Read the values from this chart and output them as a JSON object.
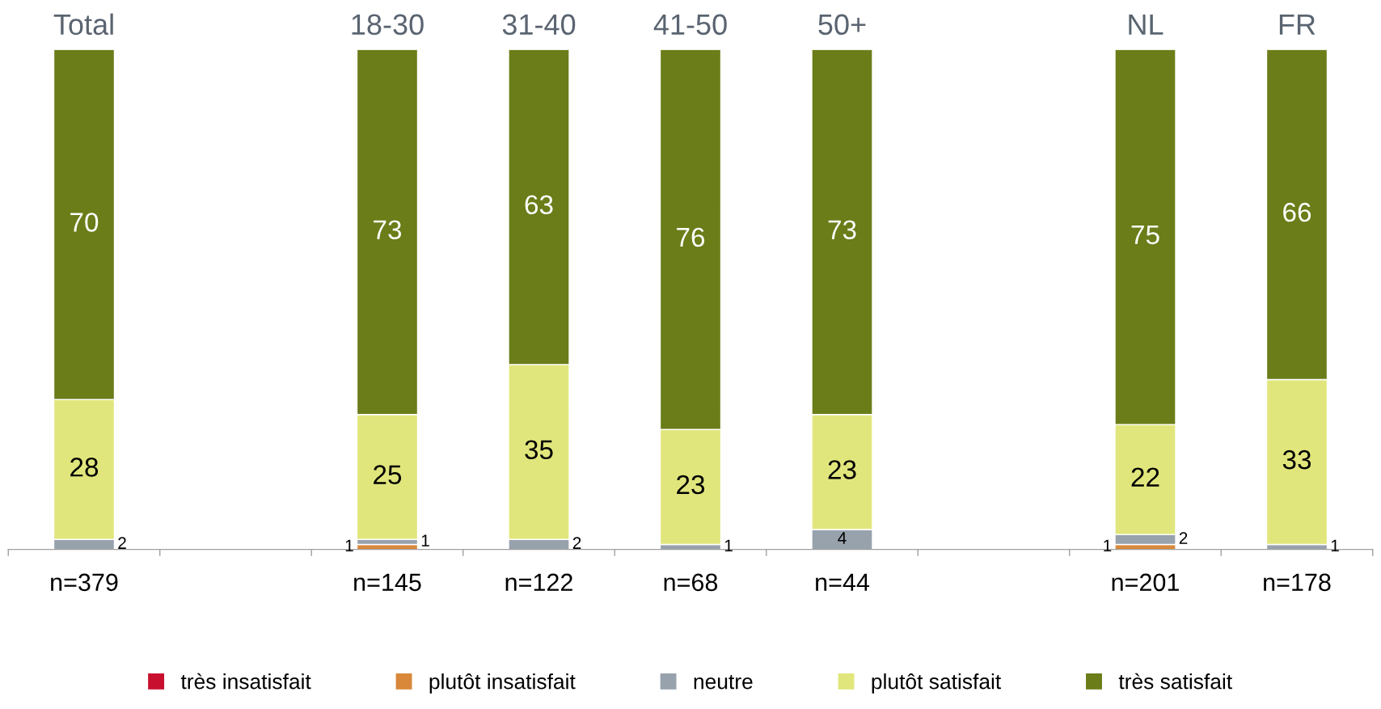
{
  "chart_data": {
    "type": "bar",
    "stacked": true,
    "data_labels": true,
    "legend": "bottom",
    "grid": false,
    "categories": [
      "Total",
      null,
      "18-30",
      "31-40",
      "41-50",
      "50+",
      null,
      "NL",
      "FR"
    ],
    "series": [
      {
        "name": "très insatisfait",
        "color": "#c8102e",
        "values": [
          null,
          null,
          null,
          null,
          null,
          null,
          null,
          null,
          null
        ]
      },
      {
        "name": "plutôt insatisfait",
        "color": "#d9883a",
        "values": [
          null,
          null,
          1,
          null,
          null,
          null,
          null,
          1,
          null
        ]
      },
      {
        "name": "neutre",
        "color": "#98a2ad",
        "values": [
          2,
          null,
          1,
          2,
          1,
          4,
          null,
          2,
          1
        ]
      },
      {
        "name": "plutôt satisfait",
        "color": "#e1e67c",
        "values": [
          28,
          null,
          25,
          35,
          23,
          23,
          null,
          22,
          33
        ]
      },
      {
        "name": "très satisfait",
        "color": "#6a7d19",
        "values": [
          70,
          null,
          73,
          63,
          76,
          73,
          null,
          75,
          66
        ]
      }
    ],
    "annotations": [
      "n=379",
      "n=145",
      "n=122",
      "n=68",
      "n=44",
      "n=201",
      "n=178"
    ]
  }
}
